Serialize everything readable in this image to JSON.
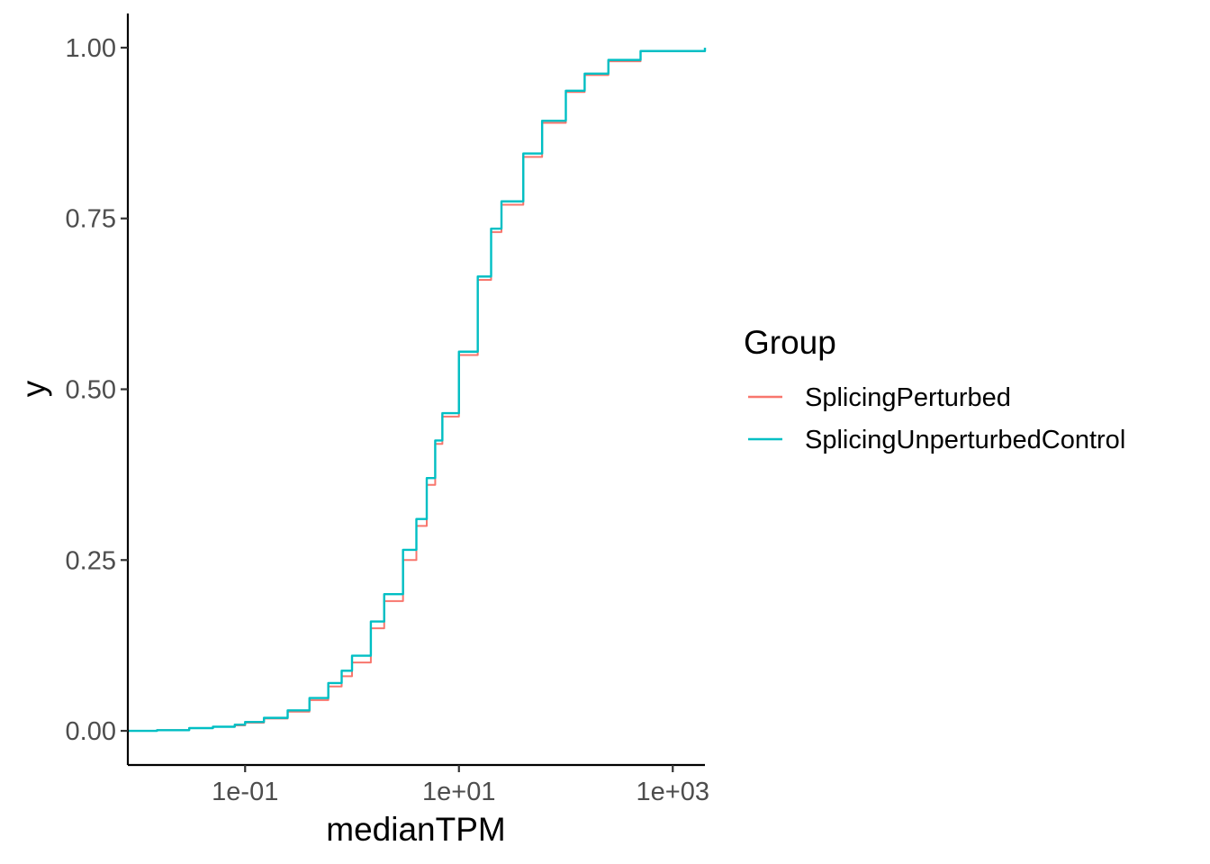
{
  "chart_data": {
    "type": "line",
    "subtype": "ecdf",
    "xlabel": "medianTPM",
    "ylabel": "y",
    "x_scale": "log10",
    "xlim": [
      0.008,
      2000
    ],
    "ylim": [
      -0.05,
      1.05
    ],
    "x_ticks": [
      {
        "value": 0.1,
        "label": "1e-01"
      },
      {
        "value": 10,
        "label": "1e+01"
      },
      {
        "value": 1000,
        "label": "1e+03"
      }
    ],
    "y_ticks": [
      {
        "value": 0,
        "label": "0.00"
      },
      {
        "value": 0.25,
        "label": "0.25"
      },
      {
        "value": 0.5,
        "label": "0.50"
      },
      {
        "value": 0.75,
        "label": "0.75"
      },
      {
        "value": 1,
        "label": "1.00"
      }
    ],
    "grid": false,
    "legend": {
      "title": "Group",
      "position": "right"
    },
    "series": [
      {
        "name": "SplicingPerturbed",
        "color": "#F8766D",
        "points": [
          [
            0.008,
            0.0
          ],
          [
            0.015,
            0.001
          ],
          [
            0.03,
            0.004
          ],
          [
            0.05,
            0.006
          ],
          [
            0.08,
            0.008
          ],
          [
            0.1,
            0.012
          ],
          [
            0.15,
            0.018
          ],
          [
            0.25,
            0.028
          ],
          [
            0.4,
            0.045
          ],
          [
            0.6,
            0.065
          ],
          [
            0.8,
            0.08
          ],
          [
            1.0,
            0.1
          ],
          [
            1.5,
            0.15
          ],
          [
            2.0,
            0.19
          ],
          [
            3.0,
            0.25
          ],
          [
            4.0,
            0.3
          ],
          [
            5.0,
            0.36
          ],
          [
            6.0,
            0.42
          ],
          [
            7.0,
            0.46
          ],
          [
            10.0,
            0.55
          ],
          [
            15.0,
            0.66
          ],
          [
            20.0,
            0.73
          ],
          [
            25.0,
            0.77
          ],
          [
            40.0,
            0.84
          ],
          [
            60.0,
            0.89
          ],
          [
            100.0,
            0.935
          ],
          [
            150.0,
            0.96
          ],
          [
            250.0,
            0.98
          ],
          [
            500.0,
            0.995
          ],
          [
            2000.0,
            1.0
          ]
        ]
      },
      {
        "name": "SplicingUnperturbedControl",
        "color": "#00BFC4",
        "points": [
          [
            0.008,
            0.0
          ],
          [
            0.015,
            0.001
          ],
          [
            0.03,
            0.004
          ],
          [
            0.05,
            0.006
          ],
          [
            0.08,
            0.009
          ],
          [
            0.1,
            0.013
          ],
          [
            0.15,
            0.019
          ],
          [
            0.25,
            0.03
          ],
          [
            0.4,
            0.048
          ],
          [
            0.6,
            0.07
          ],
          [
            0.8,
            0.088
          ],
          [
            1.0,
            0.11
          ],
          [
            1.5,
            0.16
          ],
          [
            2.0,
            0.2
          ],
          [
            3.0,
            0.265
          ],
          [
            4.0,
            0.31
          ],
          [
            5.0,
            0.37
          ],
          [
            6.0,
            0.425
          ],
          [
            7.0,
            0.465
          ],
          [
            10.0,
            0.555
          ],
          [
            15.0,
            0.665
          ],
          [
            20.0,
            0.735
          ],
          [
            25.0,
            0.775
          ],
          [
            40.0,
            0.845
          ],
          [
            60.0,
            0.893
          ],
          [
            100.0,
            0.937
          ],
          [
            150.0,
            0.962
          ],
          [
            250.0,
            0.982
          ],
          [
            500.0,
            0.995
          ],
          [
            2000.0,
            1.0
          ]
        ]
      }
    ]
  }
}
